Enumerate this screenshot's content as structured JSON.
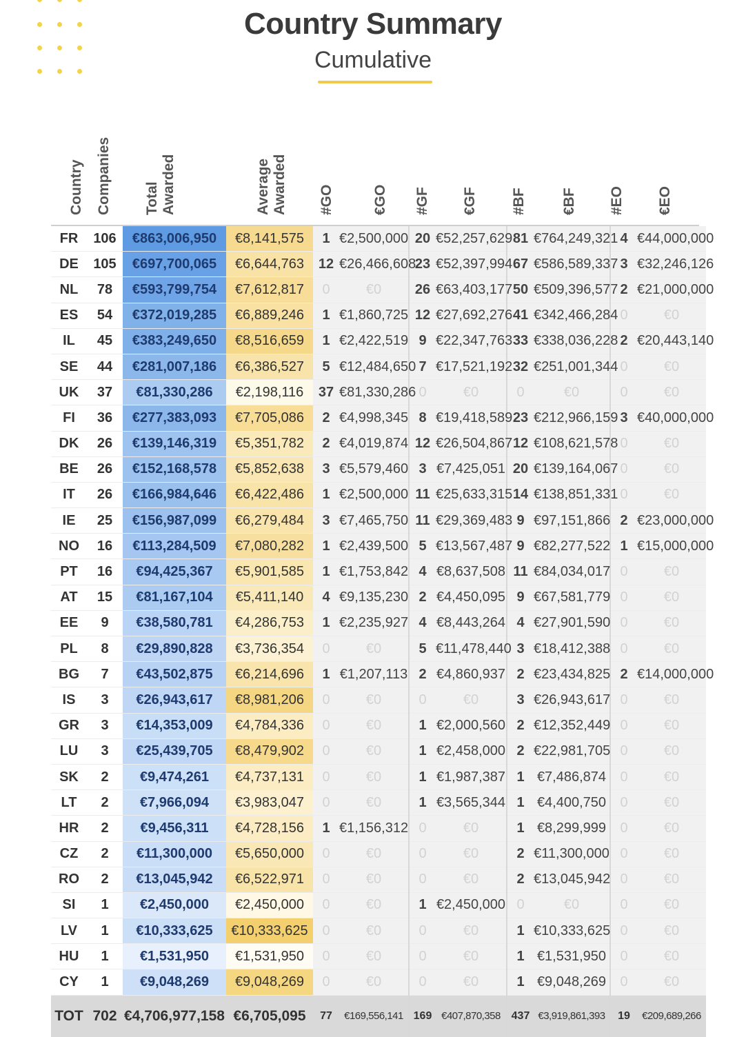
{
  "header": {
    "title": "Country Summary",
    "subtitle": "Cumulative"
  },
  "colors": {
    "accent": "#f2c94c",
    "total_awarded_scale": [
      "#e7f0fc",
      "#5e9be3"
    ],
    "average_awarded_scale": [
      "#fffdf3",
      "#f3cf6e"
    ]
  },
  "columns": [
    "Country",
    "Companies",
    "Total Awarded",
    "Average Awarded",
    "#GO",
    "€GO",
    "#GF",
    "€GF",
    "#BF",
    "€BF",
    "#EO",
    "€EO"
  ],
  "rows": [
    [
      "FR",
      "106",
      "€863,006,950",
      "€8,141,575",
      "1",
      "€2,500,000",
      "20",
      "€52,257,629",
      "81",
      "€764,249,321",
      "4",
      "€44,000,000"
    ],
    [
      "DE",
      "105",
      "€697,700,065",
      "€6,644,763",
      "12",
      "€26,466,608",
      "23",
      "€52,397,994",
      "67",
      "€586,589,337",
      "3",
      "€32,246,126"
    ],
    [
      "NL",
      "78",
      "€593,799,754",
      "€7,612,817",
      "0",
      "€0",
      "26",
      "€63,403,177",
      "50",
      "€509,396,577",
      "2",
      "€21,000,000"
    ],
    [
      "ES",
      "54",
      "€372,019,285",
      "€6,889,246",
      "1",
      "€1,860,725",
      "12",
      "€27,692,276",
      "41",
      "€342,466,284",
      "0",
      "€0"
    ],
    [
      "IL",
      "45",
      "€383,249,650",
      "€8,516,659",
      "1",
      "€2,422,519",
      "9",
      "€22,347,763",
      "33",
      "€338,036,228",
      "2",
      "€20,443,140"
    ],
    [
      "SE",
      "44",
      "€281,007,186",
      "€6,386,527",
      "5",
      "€12,484,650",
      "7",
      "€17,521,192",
      "32",
      "€251,001,344",
      "0",
      "€0"
    ],
    [
      "UK",
      "37",
      "€81,330,286",
      "€2,198,116",
      "37",
      "€81,330,286",
      "0",
      "€0",
      "0",
      "€0",
      "0",
      "€0"
    ],
    [
      "FI",
      "36",
      "€277,383,093",
      "€7,705,086",
      "2",
      "€4,998,345",
      "8",
      "€19,418,589",
      "23",
      "€212,966,159",
      "3",
      "€40,000,000"
    ],
    [
      "DK",
      "26",
      "€139,146,319",
      "€5,351,782",
      "2",
      "€4,019,874",
      "12",
      "€26,504,867",
      "12",
      "€108,621,578",
      "0",
      "€0"
    ],
    [
      "BE",
      "26",
      "€152,168,578",
      "€5,852,638",
      "3",
      "€5,579,460",
      "3",
      "€7,425,051",
      "20",
      "€139,164,067",
      "0",
      "€0"
    ],
    [
      "IT",
      "26",
      "€166,984,646",
      "€6,422,486",
      "1",
      "€2,500,000",
      "11",
      "€25,633,315",
      "14",
      "€138,851,331",
      "0",
      "€0"
    ],
    [
      "IE",
      "25",
      "€156,987,099",
      "€6,279,484",
      "3",
      "€7,465,750",
      "11",
      "€29,369,483",
      "9",
      "€97,151,866",
      "2",
      "€23,000,000"
    ],
    [
      "NO",
      "16",
      "€113,284,509",
      "€7,080,282",
      "1",
      "€2,439,500",
      "5",
      "€13,567,487",
      "9",
      "€82,277,522",
      "1",
      "€15,000,000"
    ],
    [
      "PT",
      "16",
      "€94,425,367",
      "€5,901,585",
      "1",
      "€1,753,842",
      "4",
      "€8,637,508",
      "11",
      "€84,034,017",
      "0",
      "€0"
    ],
    [
      "AT",
      "15",
      "€81,167,104",
      "€5,411,140",
      "4",
      "€9,135,230",
      "2",
      "€4,450,095",
      "9",
      "€67,581,779",
      "0",
      "€0"
    ],
    [
      "EE",
      "9",
      "€38,580,781",
      "€4,286,753",
      "1",
      "€2,235,927",
      "4",
      "€8,443,264",
      "4",
      "€27,901,590",
      "0",
      "€0"
    ],
    [
      "PL",
      "8",
      "€29,890,828",
      "€3,736,354",
      "0",
      "€0",
      "5",
      "€11,478,440",
      "3",
      "€18,412,388",
      "0",
      "€0"
    ],
    [
      "BG",
      "7",
      "€43,502,875",
      "€6,214,696",
      "1",
      "€1,207,113",
      "2",
      "€4,860,937",
      "2",
      "€23,434,825",
      "2",
      "€14,000,000"
    ],
    [
      "IS",
      "3",
      "€26,943,617",
      "€8,981,206",
      "0",
      "€0",
      "0",
      "€0",
      "3",
      "€26,943,617",
      "0",
      "€0"
    ],
    [
      "GR",
      "3",
      "€14,353,009",
      "€4,784,336",
      "0",
      "€0",
      "1",
      "€2,000,560",
      "2",
      "€12,352,449",
      "0",
      "€0"
    ],
    [
      "LU",
      "3",
      "€25,439,705",
      "€8,479,902",
      "0",
      "€0",
      "1",
      "€2,458,000",
      "2",
      "€22,981,705",
      "0",
      "€0"
    ],
    [
      "SK",
      "2",
      "€9,474,261",
      "€4,737,131",
      "0",
      "€0",
      "1",
      "€1,987,387",
      "1",
      "€7,486,874",
      "0",
      "€0"
    ],
    [
      "LT",
      "2",
      "€7,966,094",
      "€3,983,047",
      "0",
      "€0",
      "1",
      "€3,565,344",
      "1",
      "€4,400,750",
      "0",
      "€0"
    ],
    [
      "HR",
      "2",
      "€9,456,311",
      "€4,728,156",
      "1",
      "€1,156,312",
      "0",
      "€0",
      "1",
      "€8,299,999",
      "0",
      "€0"
    ],
    [
      "CZ",
      "2",
      "€11,300,000",
      "€5,650,000",
      "0",
      "€0",
      "0",
      "€0",
      "2",
      "€11,300,000",
      "0",
      "€0"
    ],
    [
      "RO",
      "2",
      "€13,045,942",
      "€6,522,971",
      "0",
      "€0",
      "0",
      "€0",
      "2",
      "€13,045,942",
      "0",
      "€0"
    ],
    [
      "SI",
      "1",
      "€2,450,000",
      "€2,450,000",
      "0",
      "€0",
      "1",
      "€2,450,000",
      "0",
      "€0",
      "0",
      "€0"
    ],
    [
      "LV",
      "1",
      "€10,333,625",
      "€10,333,625",
      "0",
      "€0",
      "0",
      "€0",
      "1",
      "€10,333,625",
      "0",
      "€0"
    ],
    [
      "HU",
      "1",
      "€1,531,950",
      "€1,531,950",
      "0",
      "€0",
      "0",
      "€0",
      "1",
      "€1,531,950",
      "0",
      "€0"
    ],
    [
      "CY",
      "1",
      "€9,048,269",
      "€9,048,269",
      "0",
      "€0",
      "0",
      "€0",
      "1",
      "€9,048,269",
      "0",
      "€0"
    ]
  ],
  "total": [
    "TOT",
    "702",
    "€4,706,977,158",
    "€6,705,095",
    "77",
    "€169,556,141",
    "169",
    "€407,870,358",
    "437",
    "€3,919,861,393",
    "19",
    "€209,689,266"
  ]
}
